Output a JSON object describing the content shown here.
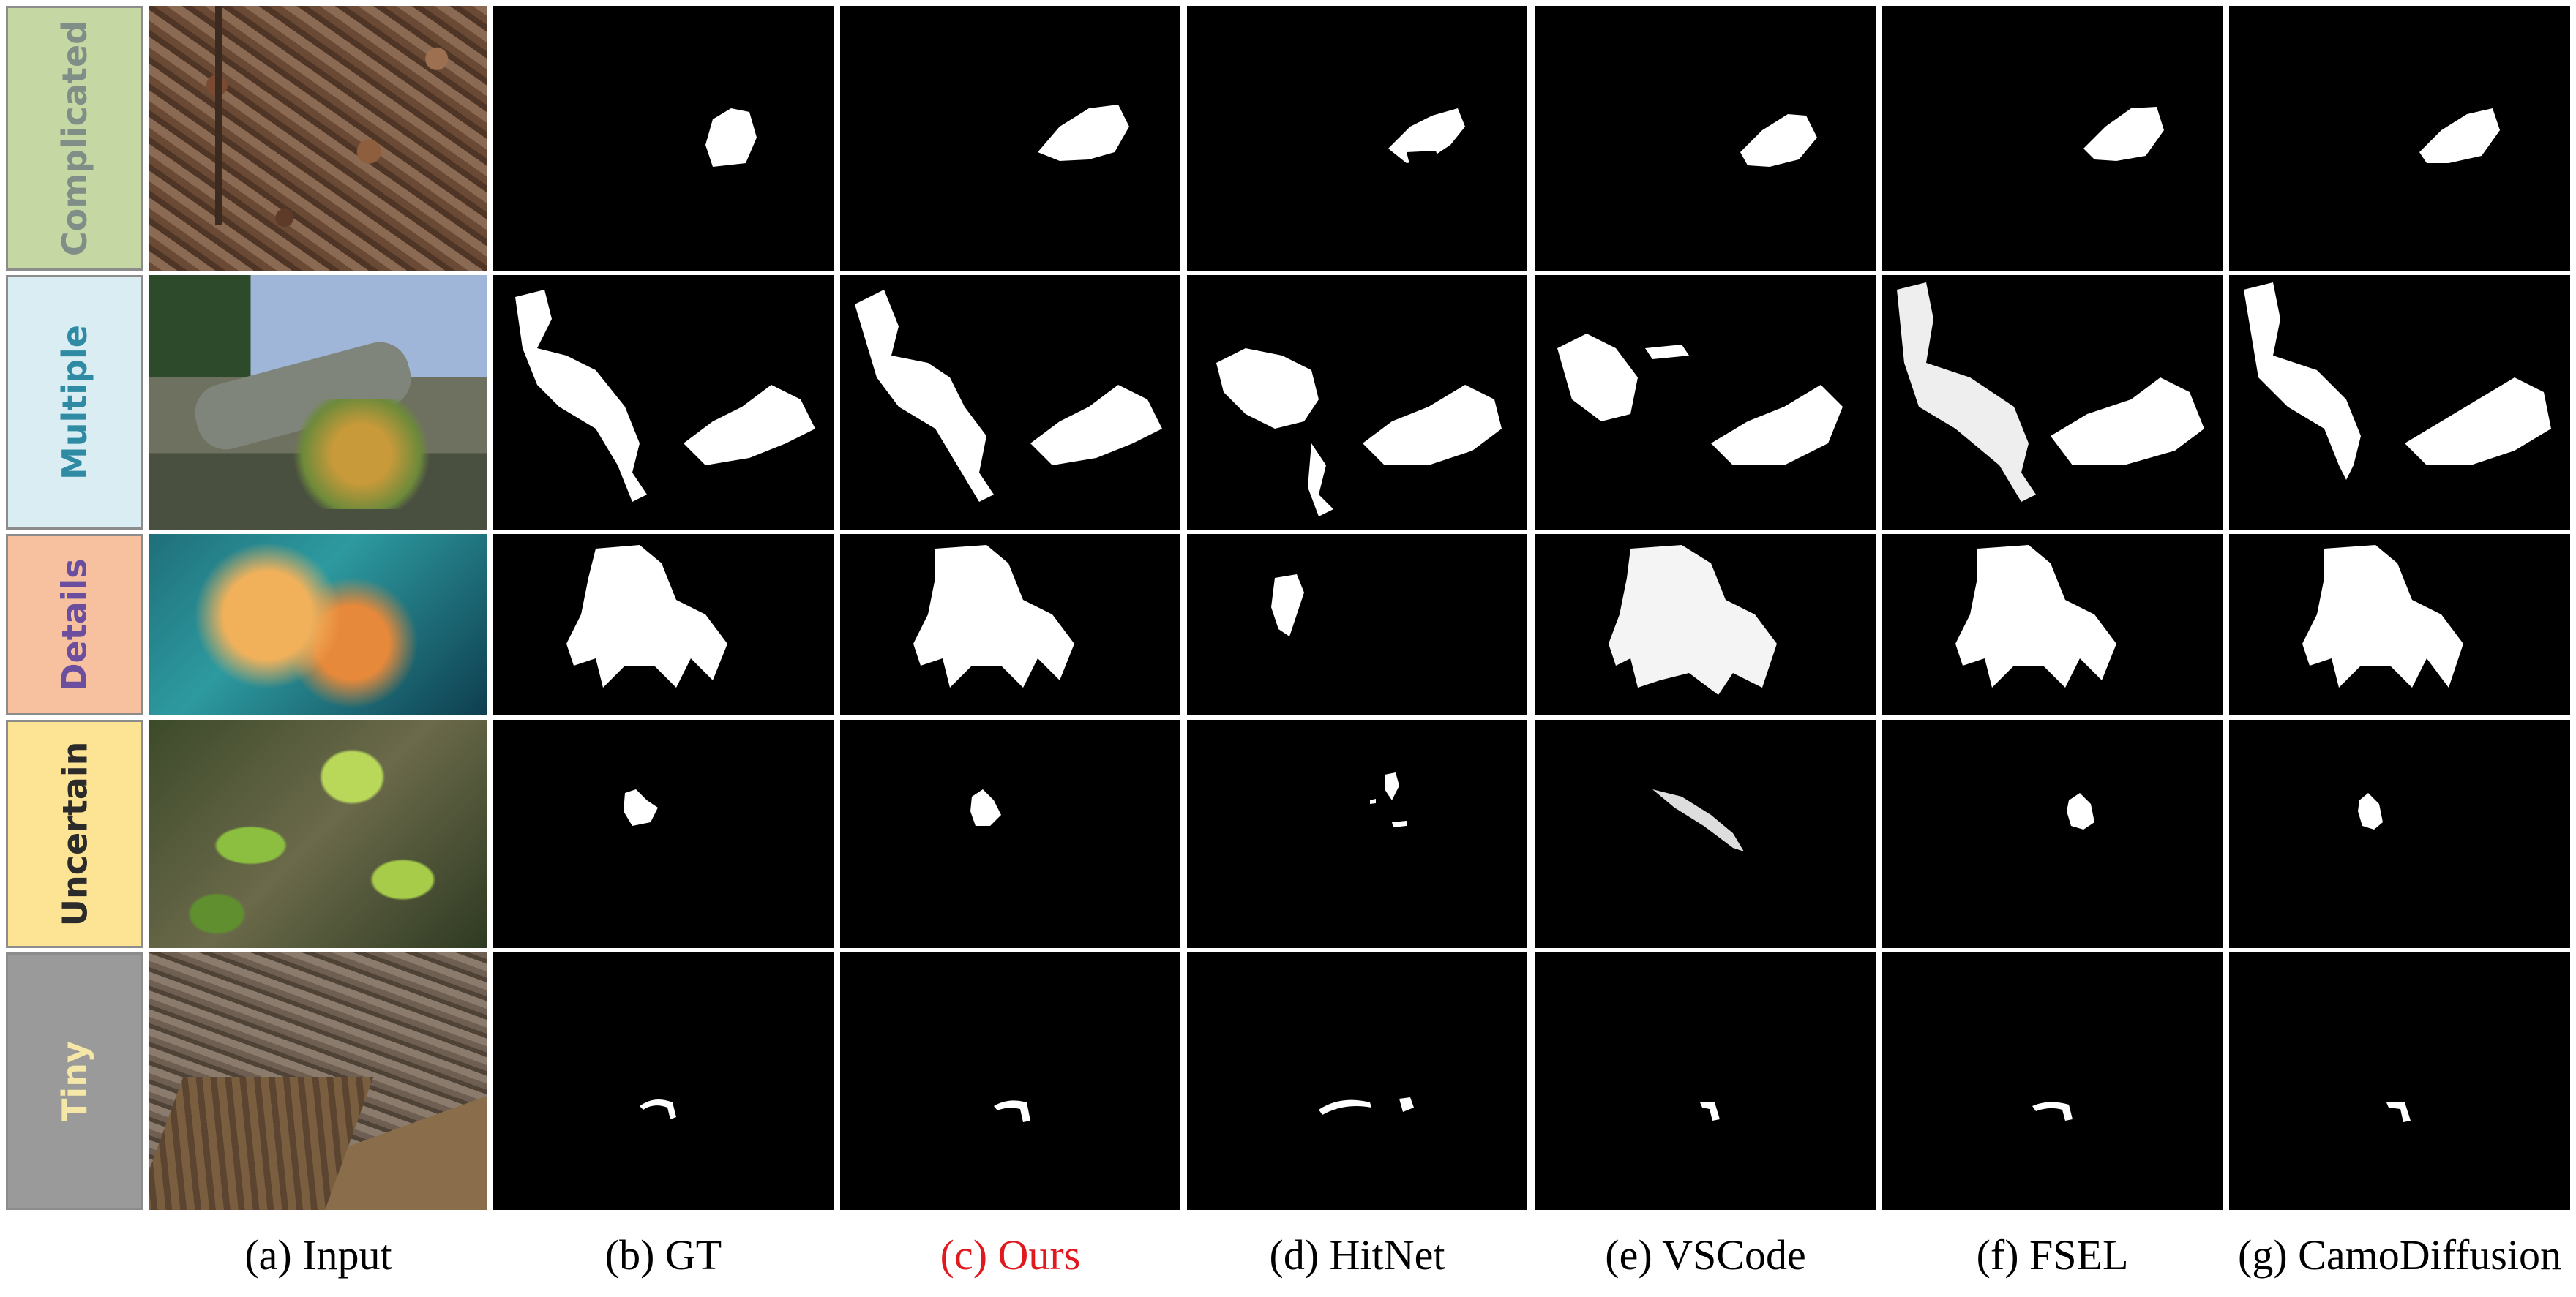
{
  "rows": [
    {
      "label": "Complicated",
      "label_color": "#7f8f87",
      "bg": "#c5d7a3"
    },
    {
      "label": "Multiple",
      "label_color": "#2f8aa3",
      "bg": "#d9edf2"
    },
    {
      "label": "Details",
      "label_color": "#6b4f9e",
      "bg": "#f7c1a0"
    },
    {
      "label": "Uncertain",
      "label_color": "#2b2b2b",
      "bg": "#fde394"
    },
    {
      "label": "Tiny",
      "label_color": "#f5e7a8",
      "bg": "#9a9a9a"
    }
  ],
  "captions": [
    {
      "text": "(a) Input",
      "color": "#000000"
    },
    {
      "text": "(b) GT",
      "color": "#000000"
    },
    {
      "text": "(c) Ours",
      "color": "#e0191f"
    },
    {
      "text": "(d) HitNet",
      "color": "#000000"
    },
    {
      "text": "(e) VSCode",
      "color": "#000000"
    },
    {
      "text": "(f) FSEL",
      "color": "#000000"
    },
    {
      "text": "(g) CamoDiffusion",
      "color": "#000000"
    }
  ]
}
